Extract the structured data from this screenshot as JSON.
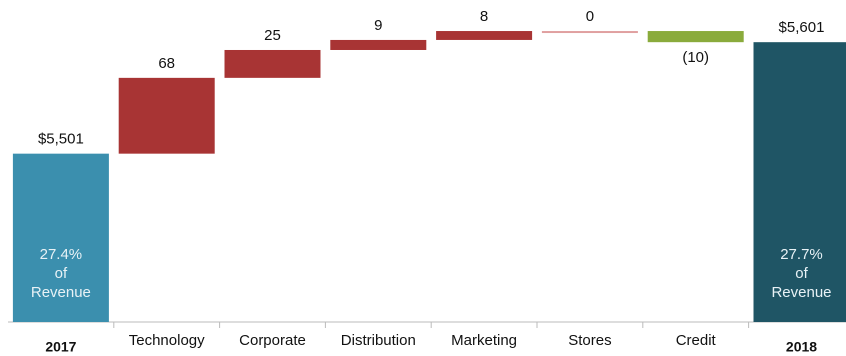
{
  "chart_data": {
    "type": "waterfall",
    "categories": [
      "2017",
      "Technology",
      "Corporate",
      "Distribution",
      "Marketing",
      "Stores",
      "Credit",
      "2018"
    ],
    "measure": [
      "total",
      "relative",
      "relative",
      "relative",
      "relative",
      "relative",
      "relative",
      "total"
    ],
    "values": [
      5501,
      68,
      25,
      9,
      8,
      0,
      -10,
      5601
    ],
    "value_labels": [
      "$5,501",
      "68",
      "25",
      "9",
      "8",
      "0",
      "(10)",
      "$5,601"
    ],
    "colors": [
      "#3b8fae",
      "#a83434",
      "#a83434",
      "#a83434",
      "#a83434",
      "#e0a0a0",
      "#8aab3c",
      "#1f5565"
    ],
    "ylim": [
      5350,
      5620
    ],
    "annotations": [
      {
        "category": 0,
        "text": "27.4%\nof\nRevenue"
      },
      {
        "category": 7,
        "text": "27.7%\nof\nRevenue"
      }
    ]
  }
}
